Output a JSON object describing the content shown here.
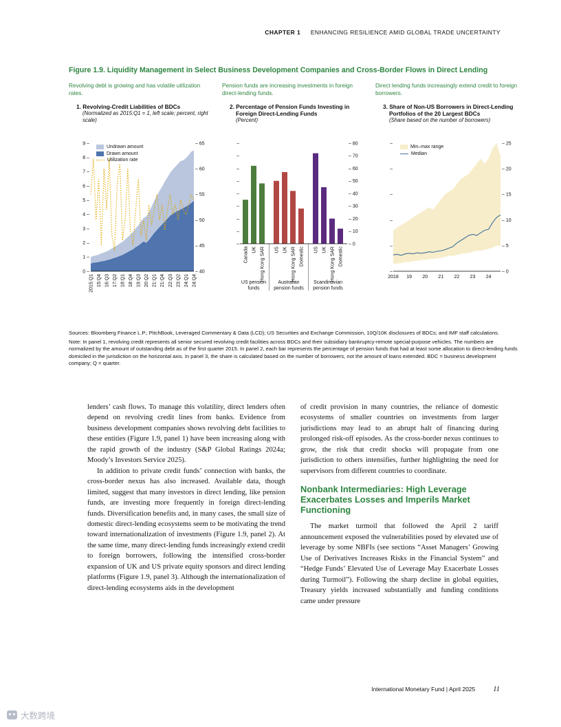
{
  "page": {
    "header": {
      "chapter": "CHAPTER 1",
      "title": "ENHANCING RESILIENCE AMID GLOBAL TRADE UNCERTAINTY"
    },
    "footer": {
      "publisher": "International Monetary Fund | April 2025",
      "page_number": "11"
    },
    "watermark": "大数跨境"
  },
  "figure": {
    "title": "Figure 1.9. Liquidity Management in Select Business Development Companies and Cross-Border Flows in Direct Lending",
    "sources": "Sources: Bloomberg Finance L.P.; PitchBook, Leveraged Commentary & Data (LCD); US Securities and Exchange Commission, 10Q/10K disclosures of BDCs; and IMF staff calculations.",
    "note": "Note: In panel 1, revolving credit represents all senior secured revolving credit facilities across BDCs and their subsidiary bankruptcy-remote special-purpose vehicles. The numbers are normalized by the amount of outstanding debt as of the first quarter 2015. In panel 2, each bar represents the percentage of pension funds that had at least some allocation to direct-lending funds domiciled in the jurisdiction on the horizontal axis. In panel 3, the share is calculated based on the number of borrowers, not the amount of loans extended. BDC = business development company; Q = quarter."
  },
  "chart_data": [
    {
      "type": "area",
      "panel": "1",
      "lede": "Revolving debt is growing and has volatile utilization rates.",
      "title": "1. Revolving-Credit Liabilities of BDCs",
      "subtitle": "(Normalized as 2015:Q1 = 1, left scale; percent, right scale)",
      "left_axis": {
        "min": 0,
        "max": 9,
        "step": 1
      },
      "right_axis": {
        "min": 40,
        "max": 65,
        "step": 5
      },
      "x_tick_labels": [
        "2015:Q1",
        "15:Q4",
        "16:Q3",
        "17:Q2",
        "18:Q1",
        "18:Q4",
        "19:Q3",
        "20:Q2",
        "21:Q1",
        "21:Q4",
        "22:Q3",
        "23:Q2",
        "24:Q1",
        "24:Q4"
      ],
      "x_tick_every": 3,
      "series": [
        {
          "name": "Drawn amount",
          "axis": "left",
          "color": "#4f74ae",
          "values": [
            0.55,
            0.6,
            0.62,
            0.65,
            0.7,
            0.72,
            0.78,
            0.82,
            0.88,
            0.95,
            1.0,
            1.08,
            1.15,
            1.25,
            1.35,
            1.45,
            1.55,
            1.7,
            1.8,
            1.95,
            2.1,
            2.0,
            2.2,
            2.45,
            2.7,
            2.9,
            3.1,
            3.3,
            3.5,
            3.7,
            3.9,
            4.05,
            4.15,
            4.25,
            4.35,
            4.45,
            4.55,
            4.65,
            4.8,
            4.95
          ]
        },
        {
          "name": "Undrawn amount",
          "axis": "left",
          "color": "#b9c6de",
          "values": [
            0.45,
            0.47,
            0.5,
            0.52,
            0.56,
            0.6,
            0.62,
            0.66,
            0.72,
            0.76,
            0.82,
            0.88,
            0.92,
            0.98,
            1.05,
            1.12,
            1.22,
            1.32,
            1.42,
            1.55,
            1.65,
            1.85,
            1.95,
            2.1,
            2.25,
            2.4,
            2.55,
            2.65,
            2.8,
            2.9,
            3.0,
            3.1,
            3.2,
            3.3,
            3.4,
            3.35,
            3.4,
            3.5,
            3.6,
            3.55
          ]
        },
        {
          "name": "Utilization rate",
          "axis": "right",
          "color": "#e0a800",
          "style": "dotted",
          "values": [
            55,
            62,
            50,
            58,
            45,
            60,
            52,
            62,
            47,
            44,
            57,
            61,
            46,
            50,
            60,
            48,
            45,
            52,
            58,
            47,
            50,
            46,
            53,
            49,
            52,
            55,
            50,
            53,
            48,
            52,
            55,
            51,
            53,
            50,
            54,
            52,
            51,
            53,
            55,
            54
          ]
        }
      ]
    },
    {
      "type": "bar",
      "panel": "2",
      "lede": "Pension funds are increasing investments in foreign direct-lending funds.",
      "title": "2. Percentage of Pension Funds Investing in Foreign Direct-Lending Funds",
      "subtitle": "(Percent)",
      "right_axis": {
        "min": 0,
        "max": 80,
        "step": 10
      },
      "groups": [
        {
          "label": "US pension funds",
          "label_lines": [
            "US pension",
            "funds"
          ],
          "color": "#4c7d3d",
          "categories": [
            "Canada",
            "UK",
            "Hong Kong SAR"
          ],
          "values": [
            35,
            62,
            48
          ]
        },
        {
          "label": "Australian pension funds",
          "label_lines": [
            "Australian",
            "pension funds"
          ],
          "color": "#b14743",
          "categories": [
            "US",
            "UK",
            "Hong Kong SAR",
            "Domestic"
          ],
          "values": [
            50,
            57,
            42,
            28
          ]
        },
        {
          "label": "Scandinavian pension funds",
          "label_lines": [
            "Scandinavian",
            "pension funds"
          ],
          "color": "#5b2b80",
          "categories": [
            "US",
            "UK",
            "Hong Kong SAR",
            "Domestic"
          ],
          "values": [
            72,
            45,
            20,
            12
          ]
        }
      ]
    },
    {
      "type": "area-range",
      "panel": "3",
      "lede": "Direct lending funds increasingly extend credit to foreign borrowers.",
      "title": "3. Share of Non-US Borrowers in Direct-Lending Portfolios of the 20 Largest BDCs",
      "subtitle": "(Share based on the number of borrowers)",
      "right_axis": {
        "min": 0,
        "max": 25,
        "step": 5
      },
      "x_tick_labels": [
        "2018",
        "19",
        "20",
        "21",
        "22",
        "23",
        "24"
      ],
      "x_tick_every": 4,
      "range": {
        "name": "Min–max range",
        "color": "#f7edca",
        "min": [
          1.5,
          1.5,
          1.6,
          1.8,
          1.8,
          2.0,
          2.0,
          2.2,
          2.2,
          2.4,
          2.4,
          2.5,
          2.6,
          2.8,
          3.0,
          3.0,
          3.2,
          3.4,
          3.5,
          3.6,
          3.8,
          4.0,
          4.0,
          4.2,
          4.4,
          4.6,
          5.0,
          5.0
        ],
        "max": [
          8.0,
          8.5,
          9.0,
          9.5,
          10.0,
          10.5,
          11.0,
          11.5,
          12.0,
          12.5,
          12.0,
          13.0,
          14.0,
          15.0,
          15.5,
          16.0,
          17.0,
          18.0,
          18.5,
          19.0,
          20.0,
          21.0,
          22.0,
          21.0,
          22.0,
          24.0,
          25.0,
          22.5
        ]
      },
      "median": {
        "name": "Median",
        "color": "#41719c",
        "values": [
          3.2,
          3.3,
          3.1,
          3.4,
          3.5,
          3.4,
          3.6,
          3.5,
          3.6,
          3.8,
          3.7,
          3.9,
          4.0,
          4.2,
          4.5,
          4.8,
          5.5,
          6.0,
          6.5,
          7.0,
          7.2,
          7.0,
          7.5,
          8.0,
          8.2,
          9.5,
          10.5,
          11.0
        ]
      }
    }
  ],
  "body": {
    "left_paragraphs": [
      "lenders’ cash flows. To manage this volatility, direct lenders often depend on revolving credit lines from banks. Evidence from business development companies shows revolving debt facilities to these entities (Figure 1.9, panel 1) have been increasing along with the rapid growth of the industry (S&P Global Ratings 2024a; Moody’s Investors Service 2025).",
      "In addition to private credit funds’ connection with banks, the cross-border nexus has also increased. Available data, though limited, suggest that many investors in direct lending, like pension funds, are investing more frequently in foreign direct-lending funds. Diversification benefits and, in many cases, the small size of domestic direct-lending ecosystems seem to be motivating the trend toward internationalization of investments (Figure 1.9, panel 2). At the same time, many direct-lending funds increasingly extend credit to foreign borrowers, following the intensified cross-border expansion of UK and US private equity sponsors and direct lending platforms (Figure 1.9, panel 3). Although the internationalization of direct-lending ecosystems aids in the development"
    ],
    "right_paragraph_1": "of credit provision in many countries, the reliance of domestic ecosystems of smaller countries on investments from larger jurisdictions may lead to an abrupt halt of financing during prolonged risk-off episodes. As the cross-border nexus continues to grow, the risk that credit shocks will propagate from one jurisdiction to others intensifies, further highlighting the need for supervisors from different countries to coordinate.",
    "section_heading": "Nonbank Intermediaries: High Leverage Exacerbates Losses and Imperils Market Functioning",
    "right_paragraph_2": "The market turmoil that followed the April 2 tariff announcement exposed the vulnerabilities posed by elevated use of leverage by some NBFIs (see sections “Asset Managers’ Growing Use of Derivatives Increases Risks in the Financial System” and “Hedge Funds’ Elevated Use of Leverage May Exacerbate Losses during Turmoil”). Following the sharp decline in global equities, Treasury yields increased substantially and funding conditions came under pressure"
  }
}
